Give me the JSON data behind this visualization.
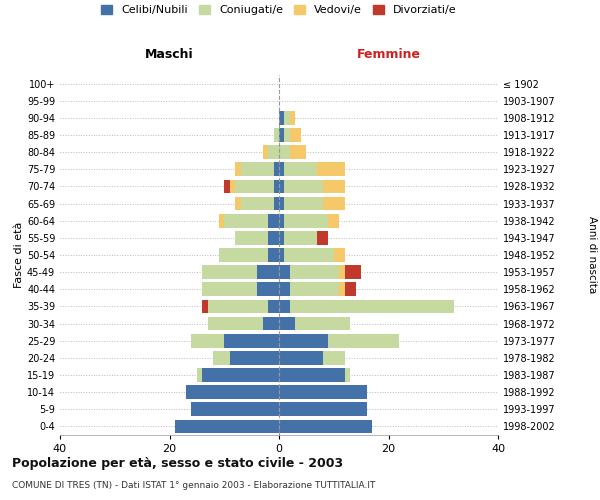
{
  "age_groups": [
    "0-4",
    "5-9",
    "10-14",
    "15-19",
    "20-24",
    "25-29",
    "30-34",
    "35-39",
    "40-44",
    "45-49",
    "50-54",
    "55-59",
    "60-64",
    "65-69",
    "70-74",
    "75-79",
    "80-84",
    "85-89",
    "90-94",
    "95-99",
    "100+"
  ],
  "birth_years": [
    "1998-2002",
    "1993-1997",
    "1988-1992",
    "1983-1987",
    "1978-1982",
    "1973-1977",
    "1968-1972",
    "1963-1967",
    "1958-1962",
    "1953-1957",
    "1948-1952",
    "1943-1947",
    "1938-1942",
    "1933-1937",
    "1928-1932",
    "1923-1927",
    "1918-1922",
    "1913-1917",
    "1908-1912",
    "1903-1907",
    "≤ 1902"
  ],
  "maschi": {
    "celibi": [
      19,
      16,
      17,
      14,
      9,
      10,
      3,
      2,
      4,
      4,
      2,
      2,
      2,
      1,
      1,
      1,
      0,
      0,
      0,
      0,
      0
    ],
    "coniugati": [
      0,
      0,
      0,
      1,
      3,
      6,
      10,
      11,
      10,
      10,
      9,
      6,
      8,
      6,
      7,
      6,
      2,
      1,
      0,
      0,
      0
    ],
    "vedovi": [
      0,
      0,
      0,
      0,
      0,
      0,
      0,
      0,
      0,
      0,
      0,
      0,
      1,
      1,
      1,
      1,
      1,
      0,
      0,
      0,
      0
    ],
    "divorziati": [
      0,
      0,
      0,
      0,
      0,
      0,
      0,
      1,
      0,
      0,
      0,
      0,
      0,
      0,
      1,
      0,
      0,
      0,
      0,
      0,
      0
    ]
  },
  "femmine": {
    "nubili": [
      17,
      16,
      16,
      12,
      8,
      9,
      3,
      2,
      2,
      2,
      1,
      1,
      1,
      1,
      1,
      1,
      0,
      1,
      1,
      0,
      0
    ],
    "coniugate": [
      0,
      0,
      0,
      1,
      4,
      13,
      10,
      30,
      9,
      9,
      9,
      6,
      8,
      7,
      7,
      6,
      2,
      1,
      1,
      0,
      0
    ],
    "vedove": [
      0,
      0,
      0,
      0,
      0,
      0,
      0,
      0,
      1,
      1,
      2,
      0,
      2,
      4,
      4,
      5,
      3,
      2,
      1,
      0,
      0
    ],
    "divorziate": [
      0,
      0,
      0,
      0,
      0,
      0,
      0,
      0,
      2,
      3,
      0,
      2,
      0,
      0,
      0,
      0,
      0,
      0,
      0,
      0,
      0
    ]
  },
  "colors": {
    "celibi_nubili": "#4472a8",
    "coniugati": "#c5d9a0",
    "vedovi": "#f5c96a",
    "divorziati": "#c0392b"
  },
  "title_main": "Popolazione per età, sesso e stato civile - 2003",
  "title_sub": "COMUNE DI TRES (TN) - Dati ISTAT 1° gennaio 2003 - Elaborazione TUTTITALIA.IT",
  "ylabel_left": "Fasce di età",
  "ylabel_right": "Anni di nascita",
  "xlabel_left": "Maschi",
  "xlabel_right": "Femmine",
  "xlim": 40,
  "background_color": "#ffffff",
  "grid_color": "#bbbbbb"
}
